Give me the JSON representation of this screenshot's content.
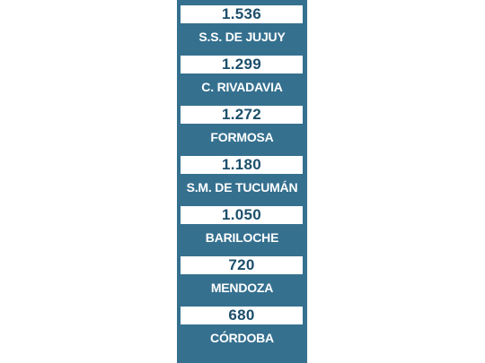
{
  "colors": {
    "panel": "#35708f",
    "value_box": "#ffffff",
    "value_text": "#1c4f6b",
    "label_text": "#ffffff"
  },
  "ranking": [
    {
      "value": "1.536",
      "city": "S.S. DE JUJUY"
    },
    {
      "value": "1.299",
      "city": "C. RIVADAVIA"
    },
    {
      "value": "1.272",
      "city": "FORMOSA"
    },
    {
      "value": "1.180",
      "city": "S.M. DE TUCUMÁN"
    },
    {
      "value": "1.050",
      "city": "BARILOCHE"
    },
    {
      "value": "720",
      "city": "MENDOZA"
    },
    {
      "value": "680",
      "city": "CÓRDOBA"
    }
  ]
}
